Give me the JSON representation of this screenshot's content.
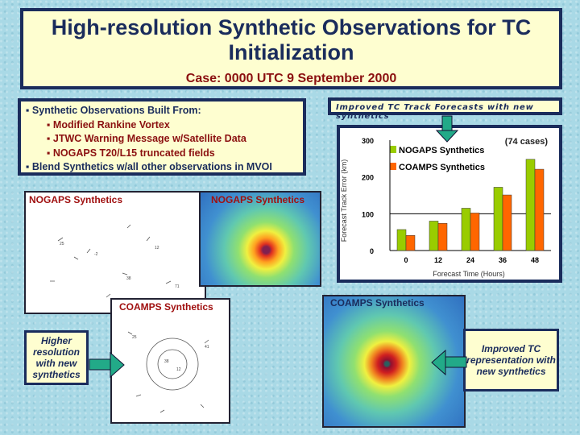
{
  "title": {
    "heading": "High-resolution Synthetic Observations for TC Initialization",
    "case": "Case: 0000 UTC 9 September 2000"
  },
  "bullets": [
    {
      "level": 1,
      "text": "Synthetic Observations Built From:"
    },
    {
      "level": 2,
      "text": "Modified Rankine Vortex"
    },
    {
      "level": 2,
      "text": "JTWC Warning Message w/Satellite Data"
    },
    {
      "level": 2,
      "text": "NOGAPS T20/L15 truncated fields"
    },
    {
      "level": 1,
      "text": "Blend Synthetics w/all other observations in MVOI"
    }
  ],
  "panels": {
    "nogaps_obs": "NOGAPS Synthetics",
    "nogaps_field": "NOGAPS Synthetics",
    "coamps_obs": "COAMPS Synthetics",
    "coamps_field": "COAMPS Synthetics"
  },
  "callouts": {
    "left": "Higher resolution with new synthetics",
    "right": "Improved TC representation with new synthetics"
  },
  "chart_header": "Improved TC Track Forecasts with new synthetics",
  "chart_data": {
    "type": "bar",
    "annotation": "(74 cases)",
    "categories": [
      "0",
      "12",
      "24",
      "36",
      "48"
    ],
    "series": [
      {
        "name": "NOGAPS Synthetics",
        "color": "#99cc00",
        "values": [
          57,
          80,
          115,
          172,
          248
        ]
      },
      {
        "name": "COAMPS Synthetics",
        "color": "#ff6600",
        "values": [
          41,
          74,
          102,
          151,
          221
        ]
      }
    ],
    "xlabel": "Forecast Time (Hours)",
    "ylabel": "Forecast Track Error (km)",
    "ylim": [
      0,
      300
    ],
    "yticks": [
      "0",
      "100",
      "200",
      "300"
    ],
    "legend": "top-left"
  }
}
